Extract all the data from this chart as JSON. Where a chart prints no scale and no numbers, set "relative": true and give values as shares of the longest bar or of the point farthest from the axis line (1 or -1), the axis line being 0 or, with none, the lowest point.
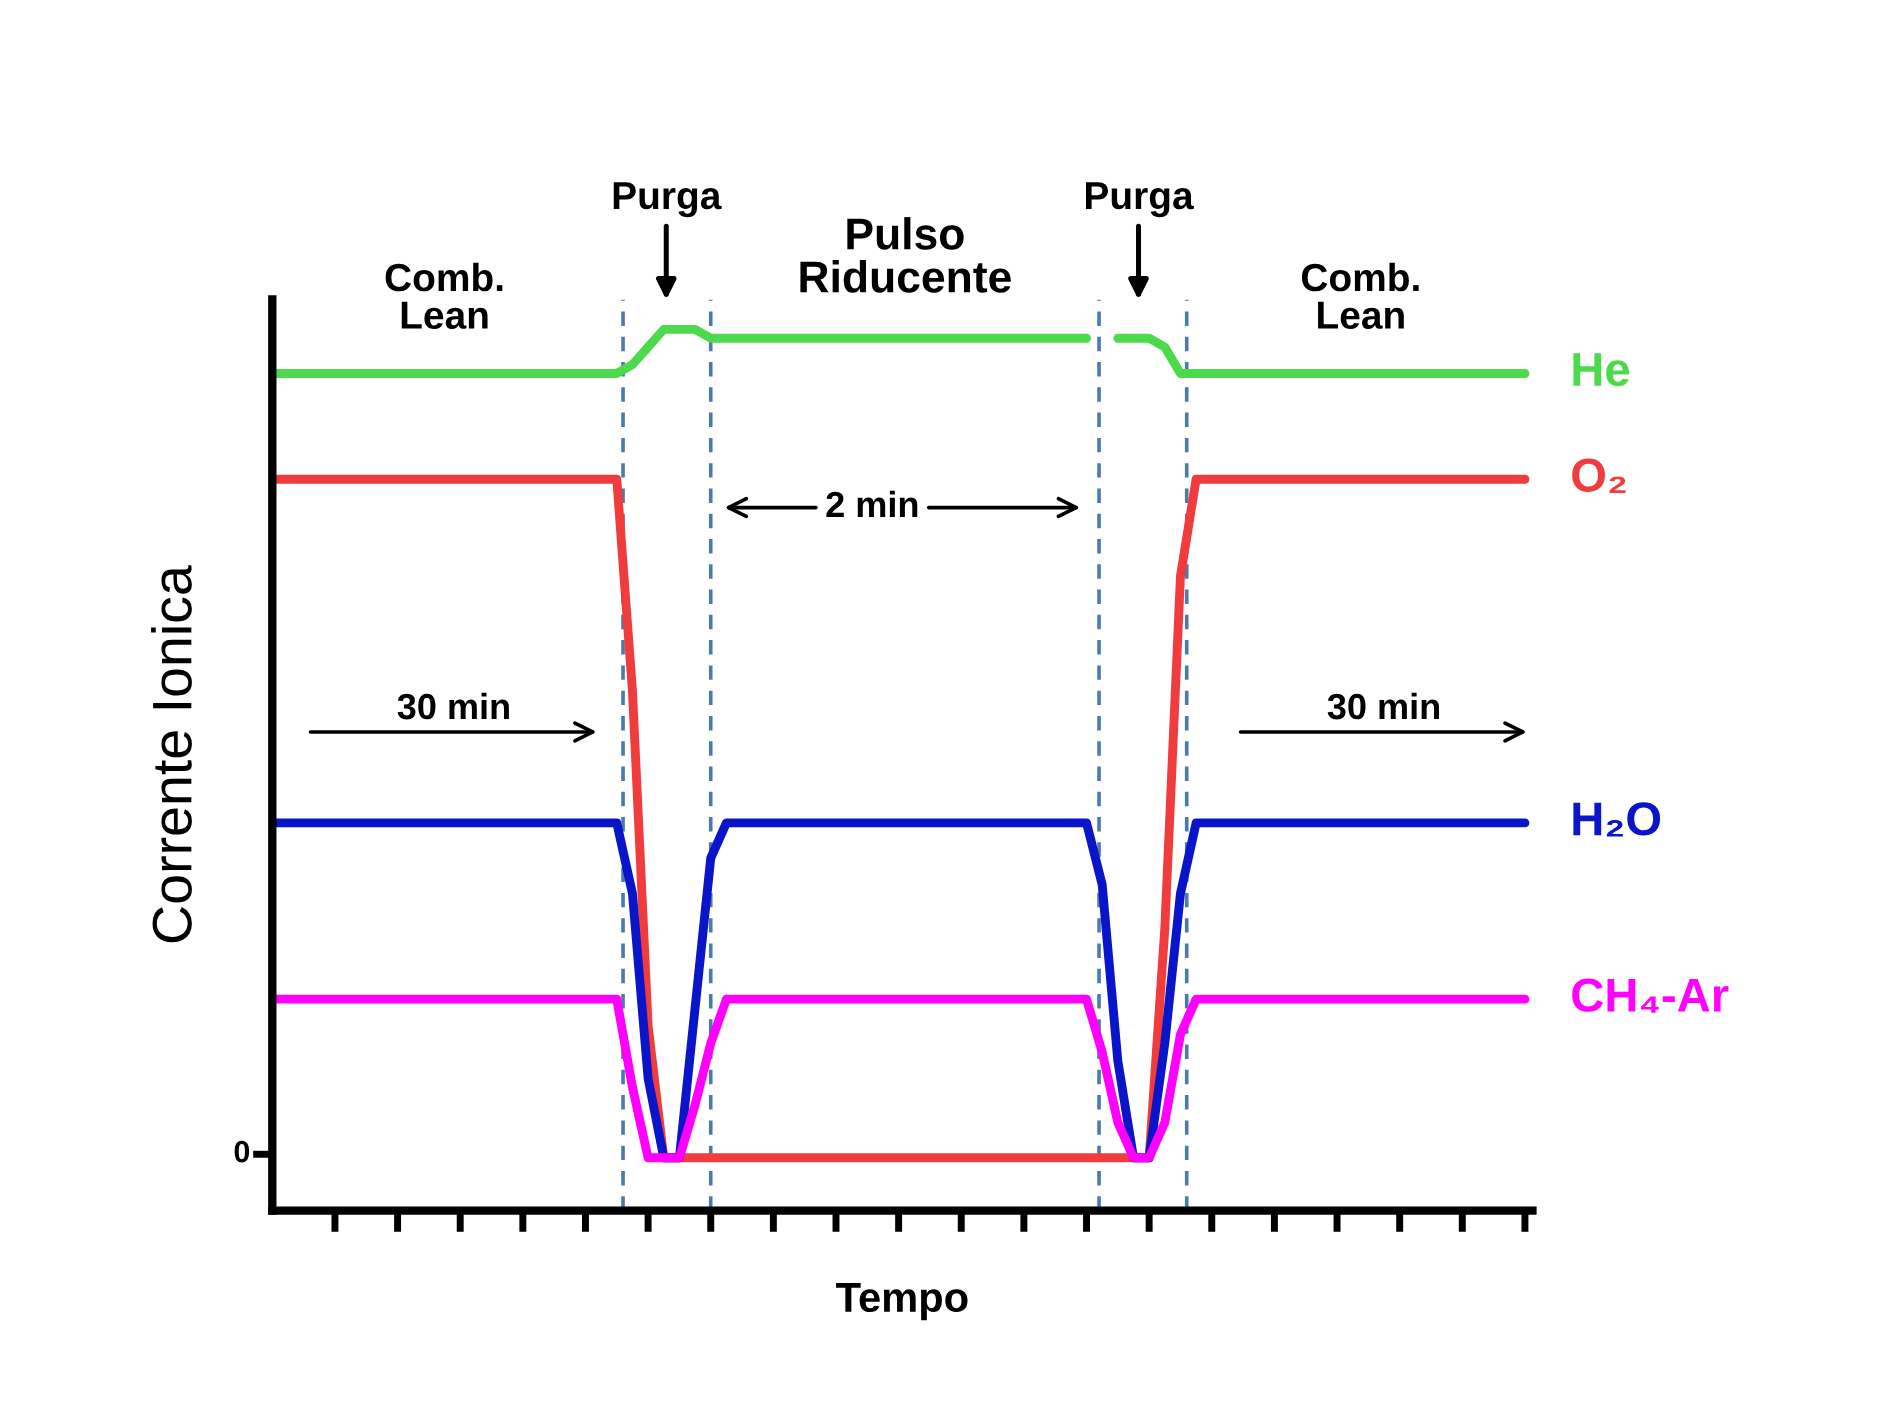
{
  "chart_data": {
    "type": "line",
    "relative": true,
    "xlabel": "Tempo",
    "ylabel": "Corrente Ionica",
    "categories": [
      null,
      null,
      null,
      null,
      null,
      null,
      null,
      null,
      null,
      null,
      null,
      null,
      null,
      null,
      null,
      null,
      null,
      null,
      null,
      null,
      null,
      null,
      null,
      null,
      null,
      null,
      null,
      null,
      null,
      null,
      null,
      null,
      null,
      null,
      null,
      null,
      null,
      null,
      null,
      null,
      null,
      null,
      null,
      null,
      null,
      null,
      null,
      null,
      null,
      null,
      null,
      null,
      null,
      null,
      null,
      null,
      null,
      null,
      null,
      null,
      null,
      null,
      null,
      null,
      null,
      null,
      null,
      null,
      null,
      null,
      null,
      null,
      null,
      null,
      null,
      null,
      null,
      null,
      null,
      null,
      null
    ],
    "series": [
      {
        "name": "He",
        "color": "#4cd94c",
        "values": [
          0.95,
          0.95,
          0.95,
          0.95,
          0.95,
          0.95,
          0.95,
          0.95,
          0.95,
          0.95,
          0.95,
          0.95,
          0.95,
          0.95,
          0.95,
          0.95,
          0.95,
          0.95,
          0.95,
          0.95,
          0.95,
          0.95,
          0.95,
          0.96,
          0.98,
          1,
          1,
          1,
          0.99,
          0.99,
          0.99,
          0.99,
          0.99,
          0.99,
          0.99,
          0.99,
          0.99,
          0.99,
          0.99,
          0.99,
          0.99,
          0.99,
          0.99,
          0.99,
          0.99,
          0.99,
          0.99,
          0.99,
          0.99,
          0.99,
          0.99,
          0.99,
          0.99,
          null,
          0.99,
          0.99,
          0.99,
          0.98,
          0.95,
          0.95,
          0.95,
          0.95,
          0.95,
          0.95,
          0.95,
          0.95,
          0.95,
          0.95,
          0.95,
          0.95,
          0.95,
          0.95,
          0.95,
          0.95,
          0.95,
          0.95,
          0.95,
          0.95,
          0.95,
          0.95,
          0.95
        ]
      },
      {
        "name": "O₂",
        "color": "#f03c3c",
        "values": [
          0.83,
          0.83,
          0.83,
          0.83,
          0.83,
          0.83,
          0.83,
          0.83,
          0.83,
          0.83,
          0.83,
          0.83,
          0.83,
          0.83,
          0.83,
          0.83,
          0.83,
          0.83,
          0.83,
          0.83,
          0.83,
          0.83,
          0.83,
          0.59,
          0.21,
          0.06,
          0.06,
          0.06,
          0.06,
          0.06,
          0.06,
          0.06,
          0.06,
          0.06,
          0.06,
          0.06,
          0.06,
          0.06,
          0.06,
          0.06,
          0.06,
          0.06,
          0.06,
          0.06,
          0.06,
          0.06,
          0.06,
          0.06,
          0.06,
          0.06,
          0.06,
          0.06,
          0.06,
          0.06,
          0.06,
          0.06,
          0.06,
          0.32,
          0.72,
          0.83,
          0.83,
          0.83,
          0.83,
          0.83,
          0.83,
          0.83,
          0.83,
          0.83,
          0.83,
          0.83,
          0.83,
          0.83,
          0.83,
          0.83,
          0.83,
          0.83,
          0.83,
          0.83,
          0.83,
          0.83,
          0.83
        ]
      },
      {
        "name": "H₂O",
        "color": "#0a14c8",
        "values": [
          0.44,
          0.44,
          0.44,
          0.44,
          0.44,
          0.44,
          0.44,
          0.44,
          0.44,
          0.44,
          0.44,
          0.44,
          0.44,
          0.44,
          0.44,
          0.44,
          0.44,
          0.44,
          0.44,
          0.44,
          0.44,
          0.44,
          0.44,
          0.36,
          0.15,
          0.06,
          0.06,
          0.23,
          0.4,
          0.44,
          0.44,
          0.44,
          0.44,
          0.44,
          0.44,
          0.44,
          0.44,
          0.44,
          0.44,
          0.44,
          0.44,
          0.44,
          0.44,
          0.44,
          0.44,
          0.44,
          0.44,
          0.44,
          0.44,
          0.44,
          0.44,
          0.44,
          0.44,
          0.37,
          0.17,
          0.06,
          0.06,
          0.19,
          0.36,
          0.44,
          0.44,
          0.44,
          0.44,
          0.44,
          0.44,
          0.44,
          0.44,
          0.44,
          0.44,
          0.44,
          0.44,
          0.44,
          0.44,
          0.44,
          0.44,
          0.44,
          0.44,
          0.44,
          0.44,
          0.44,
          0.44
        ]
      },
      {
        "name": "CH₄-Ar",
        "color": "#ff00ff",
        "values": [
          0.24,
          0.24,
          0.24,
          0.24,
          0.24,
          0.24,
          0.24,
          0.24,
          0.24,
          0.24,
          0.24,
          0.24,
          0.24,
          0.24,
          0.24,
          0.24,
          0.24,
          0.24,
          0.24,
          0.24,
          0.24,
          0.24,
          0.24,
          0.14,
          0.06,
          0.06,
          0.06,
          0.12,
          0.19,
          0.24,
          0.24,
          0.24,
          0.24,
          0.24,
          0.24,
          0.24,
          0.24,
          0.24,
          0.24,
          0.24,
          0.24,
          0.24,
          0.24,
          0.24,
          0.24,
          0.24,
          0.24,
          0.24,
          0.24,
          0.24,
          0.24,
          0.24,
          0.24,
          0.18,
          0.1,
          0.06,
          0.06,
          0.1,
          0.2,
          0.24,
          0.24,
          0.24,
          0.24,
          0.24,
          0.24,
          0.24,
          0.24,
          0.24,
          0.24,
          0.24,
          0.24,
          0.24,
          0.24,
          0.24,
          0.24,
          0.24,
          0.24,
          0.24,
          0.24,
          0.24,
          0.24
        ]
      }
    ],
    "annotations": [
      "Comb.\nLean",
      "Purga",
      "Pulso\nRiducente",
      "Purga",
      "Comb.\nLean",
      "2 min",
      "30 min",
      "30 min",
      "0"
    ]
  }
}
